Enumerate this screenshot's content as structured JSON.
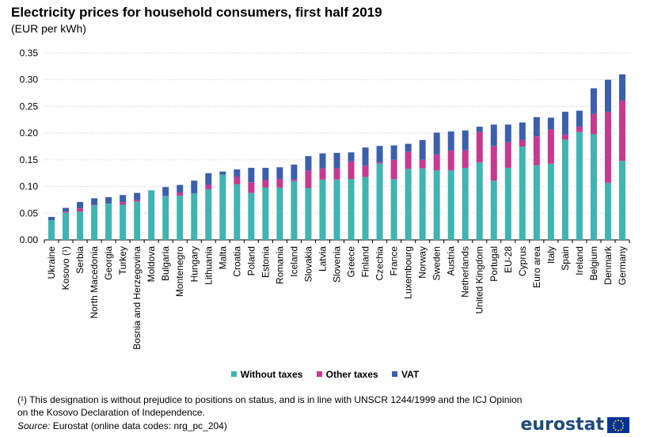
{
  "title": "Electricity prices for household consumers, first half 2019",
  "subtitle": "(EUR per kWh)",
  "footnote": "(¹) This designation is without prejudice to positions on status, and is in line with UNSCR 1244/1999 and the ICJ Opinion on the Kosovo Declaration of Independence.",
  "source_label": "Source:",
  "source_text": "Eurostat (online data codes: nrg_pc_204)",
  "logo": "eurostat",
  "chart_data": {
    "type": "bar",
    "stacked": true,
    "categories": [
      "Ukraine",
      "Kosovo (¹)",
      "Serbia",
      "North Macedonia",
      "Georgia",
      "Turkey",
      "Bosnia and Herzegovina",
      "Moldova",
      "Bulgaria",
      "Montenegro",
      "Hungary",
      "Lithuania",
      "Malta",
      "Croatia",
      "Poland",
      "Estonia",
      "Romania",
      "Iceland",
      "Slovakia",
      "Latvia",
      "Slovenia",
      "Greece",
      "Finland",
      "Czechia",
      "France",
      "Luxembourg",
      "Norway",
      "Sweden",
      "Austria",
      "Netherlands",
      "United Kingdom",
      "Portugal",
      "EU-28",
      "Cyprus",
      "Euro area",
      "Italy",
      "Spain",
      "Ireland",
      "Belgium",
      "Denmark",
      "Germany"
    ],
    "series": [
      {
        "name": "Without taxes",
        "color": "#3fb4b0",
        "values": [
          0.037,
          0.051,
          0.053,
          0.065,
          0.068,
          0.066,
          0.072,
          0.093,
          0.082,
          0.083,
          0.087,
          0.095,
          0.122,
          0.104,
          0.088,
          0.098,
          0.098,
          0.11,
          0.097,
          0.113,
          0.113,
          0.114,
          0.118,
          0.143,
          0.114,
          0.133,
          0.134,
          0.13,
          0.13,
          0.135,
          0.145,
          0.111,
          0.135,
          0.175,
          0.14,
          0.143,
          0.188,
          0.202,
          0.198,
          0.107,
          0.148
        ]
      },
      {
        "name": "Other taxes",
        "color": "#c6398f",
        "values": [
          0.0,
          0.002,
          0.006,
          0.001,
          0.0,
          0.005,
          0.003,
          0.0,
          0.001,
          0.006,
          0.0,
          0.008,
          0.0,
          0.014,
          0.02,
          0.014,
          0.016,
          0.003,
          0.033,
          0.021,
          0.021,
          0.033,
          0.021,
          0.002,
          0.036,
          0.032,
          0.016,
          0.03,
          0.037,
          0.033,
          0.057,
          0.065,
          0.048,
          0.012,
          0.054,
          0.064,
          0.009,
          0.01,
          0.038,
          0.133,
          0.113
        ]
      },
      {
        "name": "VAT",
        "color": "#3b5fad",
        "values": [
          0.006,
          0.007,
          0.012,
          0.012,
          0.012,
          0.013,
          0.013,
          0.0,
          0.016,
          0.014,
          0.024,
          0.022,
          0.006,
          0.014,
          0.027,
          0.023,
          0.022,
          0.028,
          0.027,
          0.028,
          0.029,
          0.017,
          0.034,
          0.031,
          0.027,
          0.015,
          0.037,
          0.041,
          0.036,
          0.037,
          0.01,
          0.04,
          0.033,
          0.033,
          0.036,
          0.022,
          0.043,
          0.03,
          0.048,
          0.06,
          0.049
        ]
      }
    ],
    "ylim": [
      0,
      0.35
    ],
    "yticks": [
      "0.00",
      "0.05",
      "0.10",
      "0.15",
      "0.20",
      "0.25",
      "0.30",
      "0.35"
    ],
    "grid": true,
    "legend_position": "bottom"
  }
}
